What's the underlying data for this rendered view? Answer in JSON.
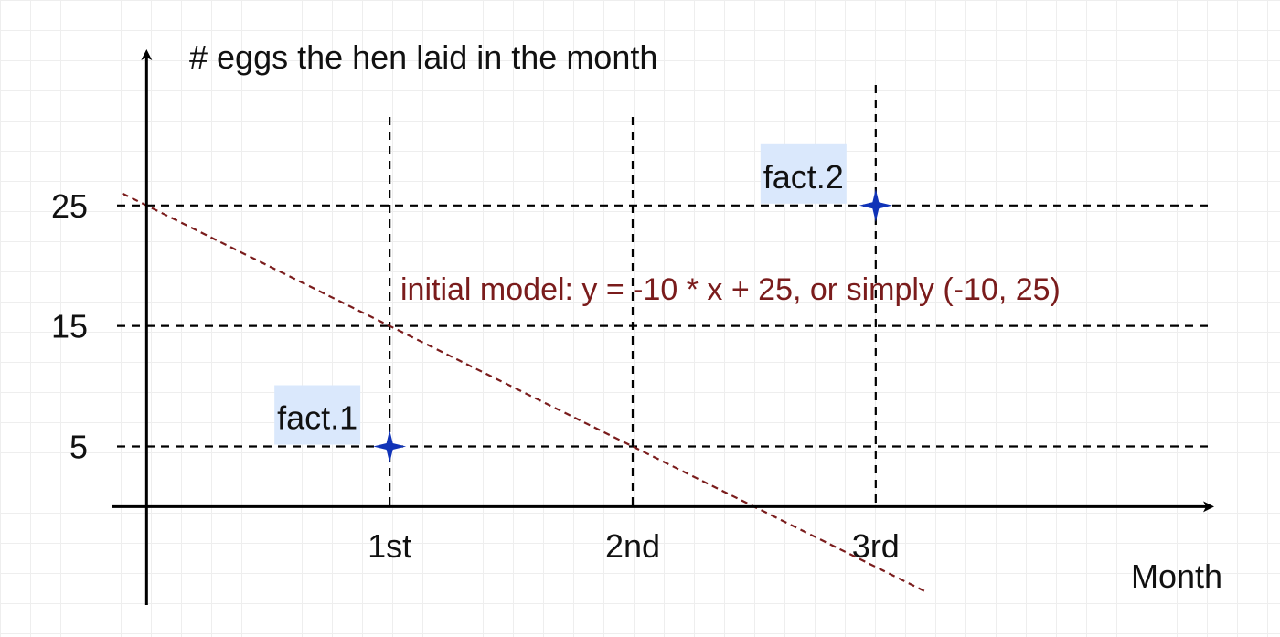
{
  "chart_data": {
    "type": "scatter",
    "ylabel": "# eggs the hen laid in the month",
    "xlabel": "Month",
    "x_categories": [
      {
        "x": 1,
        "label": "1st"
      },
      {
        "x": 2,
        "label": "2nd"
      },
      {
        "x": 3,
        "label": "3rd"
      }
    ],
    "y_ticks": [
      5,
      15,
      25
    ],
    "xlim": [
      -0.02,
      4.4
    ],
    "ylim": [
      -0.5,
      37.5
    ],
    "grid": "dashed reference lines at each tick",
    "points": [
      {
        "label": "fact.1",
        "x": 1,
        "y": 5
      },
      {
        "label": "fact.2",
        "x": 3,
        "y": 25
      }
    ],
    "model_line": {
      "label": "initial model: y = -10 * x + 25, or simply  (-10, 25)",
      "slope": -10,
      "intercept": 25,
      "x_range": [
        -0.1,
        3.2
      ]
    },
    "colors": {
      "axis": "#000000",
      "grid": "#000000",
      "point": "#1033b8",
      "model": "#7a1c1c",
      "label_bg": "#dae8fc"
    }
  }
}
